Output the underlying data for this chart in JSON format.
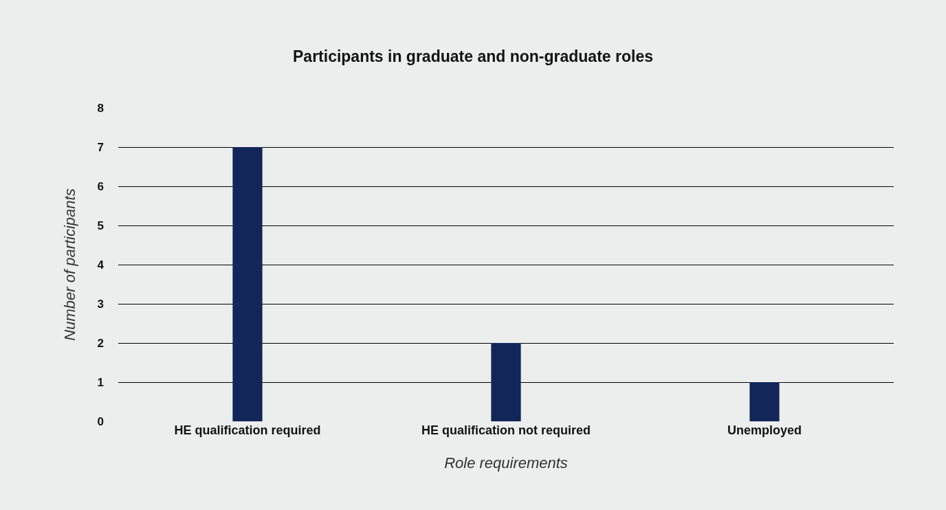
{
  "chart_data": {
    "type": "bar",
    "title": "Participants in graduate and non-graduate roles",
    "xlabel": "Role requirements",
    "ylabel": "Number of participants",
    "categories": [
      "HE qualification required",
      "HE qualification not required",
      "Unemployed"
    ],
    "values": [
      7,
      2,
      1
    ],
    "color": "#13265a",
    "ylim": [
      0,
      8
    ],
    "yticks": [
      0,
      1,
      2,
      3,
      4,
      5,
      6,
      7,
      8
    ],
    "grid": "y",
    "legend": false
  }
}
